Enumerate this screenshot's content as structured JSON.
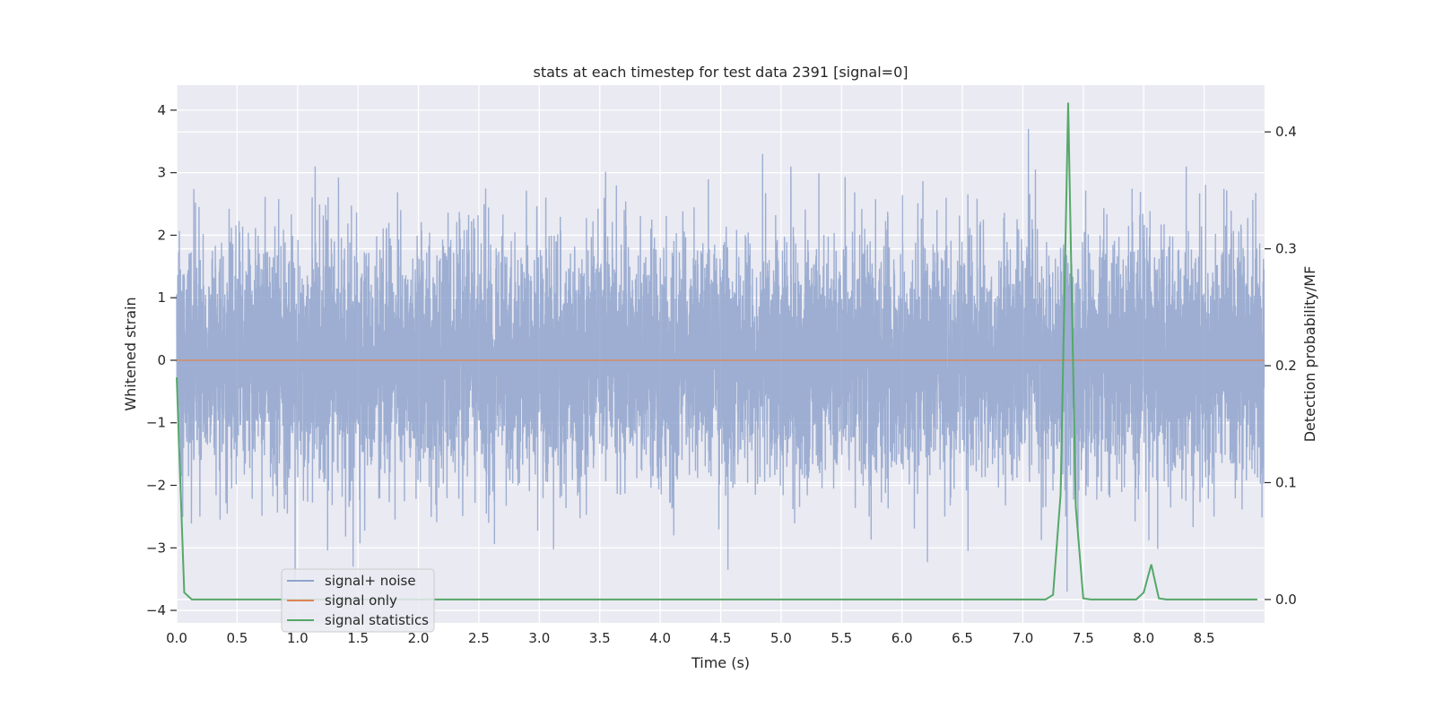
{
  "chart_data": {
    "type": "line",
    "title": "stats at each timestep for test data 2391 [signal=0]",
    "xlabel": "Time (s)",
    "ylabel_left": "Whitened strain",
    "ylabel_right": "Detection probability/MF",
    "xlim": [
      0,
      9
    ],
    "ylim_left": [
      -4.2,
      4.4
    ],
    "ylim_right": [
      -0.02,
      0.44
    ],
    "x_ticks": [
      0.0,
      0.5,
      1.0,
      1.5,
      2.0,
      2.5,
      3.0,
      3.5,
      4.0,
      4.5,
      5.0,
      5.5,
      6.0,
      6.5,
      7.0,
      7.5,
      8.0,
      8.5
    ],
    "x_tick_labels": [
      "0.0",
      "0.5",
      "1.0",
      "1.5",
      "2.0",
      "2.5",
      "3.0",
      "3.5",
      "4.0",
      "4.5",
      "5.0",
      "5.5",
      "6.0",
      "6.5",
      "7.0",
      "7.5",
      "8.0",
      "8.5"
    ],
    "y_ticks_left": [
      4,
      3,
      2,
      1,
      0,
      -1,
      -2,
      -3,
      -4
    ],
    "y_tick_labels_left": [
      "4",
      "3",
      "2",
      "1",
      "0",
      "−1",
      "−2",
      "−3",
      "−4"
    ],
    "y_ticks_right": [
      0.4,
      0.3,
      0.2,
      0.1,
      0.0
    ],
    "y_tick_labels_right": [
      "0.4",
      "0.3",
      "0.2",
      "0.1",
      "0.0"
    ],
    "grid": true,
    "legend_position": "lower-left",
    "series": [
      {
        "name": "signal+ noise",
        "axis": "left",
        "color": "#8fa3cc",
        "description_of_values": "white noise",
        "range": [
          -3.7,
          4.0
        ],
        "notable_peaks": [
          {
            "x": 7.37,
            "y": 4.0
          },
          {
            "x": 7.37,
            "y": -3.7
          },
          {
            "x": 7.05,
            "y": 3.7
          },
          {
            "x": 4.85,
            "y": 3.3
          },
          {
            "x": 0.98,
            "y": -3.5
          },
          {
            "x": 1.46,
            "y": -3.3
          },
          {
            "x": 6.55,
            "y": -3.05
          }
        ]
      },
      {
        "name": "signal only",
        "axis": "left",
        "color": "#dd8452",
        "x": [
          0.0,
          9.0
        ],
        "y": [
          0.0,
          0.0
        ]
      },
      {
        "name": "signal statistics",
        "axis": "right",
        "color": "#55a868",
        "x": [
          0.0,
          0.0625,
          0.125,
          0.1875,
          0.25,
          7.1875,
          7.25,
          7.3125,
          7.375,
          7.4375,
          7.5,
          7.5625,
          7.9375,
          8.0,
          8.0625,
          8.125,
          8.1875,
          8.94
        ],
        "y": [
          0.19,
          0.006,
          0.0,
          0.0,
          0.0,
          0.0,
          0.004,
          0.09,
          0.425,
          0.08,
          0.001,
          0.0,
          0.0,
          0.006,
          0.03,
          0.001,
          0.0,
          0.0
        ]
      }
    ],
    "legend": [
      "signal+ noise",
      "signal only",
      "signal statistics"
    ]
  }
}
